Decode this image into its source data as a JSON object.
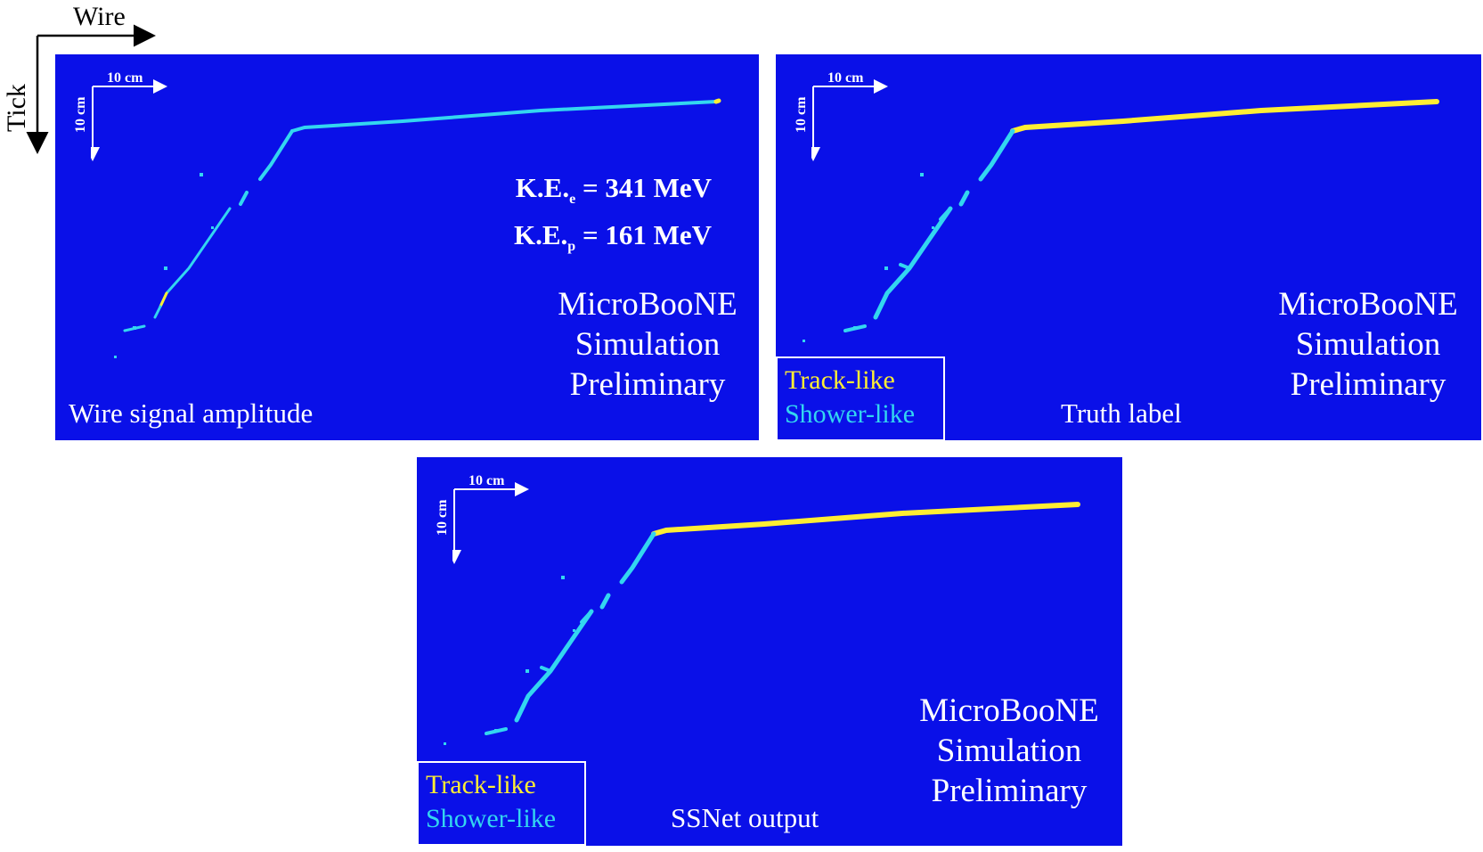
{
  "axes": {
    "horizontal": "Wire",
    "vertical": "Tick"
  },
  "scale_bar": {
    "horizontal": "10 cm",
    "vertical": "10 cm"
  },
  "panels": [
    {
      "caption": "Wire signal amplitude",
      "watermark": [
        "MicroBooNE",
        "Simulation",
        "Preliminary"
      ],
      "energy": [
        {
          "prefix": "K.E.",
          "sub": "e",
          "value": " = 341 MeV"
        },
        {
          "prefix": "K.E.",
          "sub": "p",
          "value": " = 161 MeV"
        }
      ]
    },
    {
      "caption": "Truth label",
      "watermark": [
        "MicroBooNE",
        "Simulation",
        "Preliminary"
      ],
      "legend": [
        "Track-like",
        "Shower-like"
      ]
    },
    {
      "caption": "SSNet output",
      "watermark": [
        "MicroBooNE",
        "Simulation",
        "Preliminary"
      ],
      "legend": [
        "Track-like",
        "Shower-like"
      ]
    }
  ],
  "colors": {
    "panel_background": "#0a10e8",
    "track_like": "#ffee33",
    "shower_like": "#33d6f0",
    "text": "#ffffff"
  }
}
